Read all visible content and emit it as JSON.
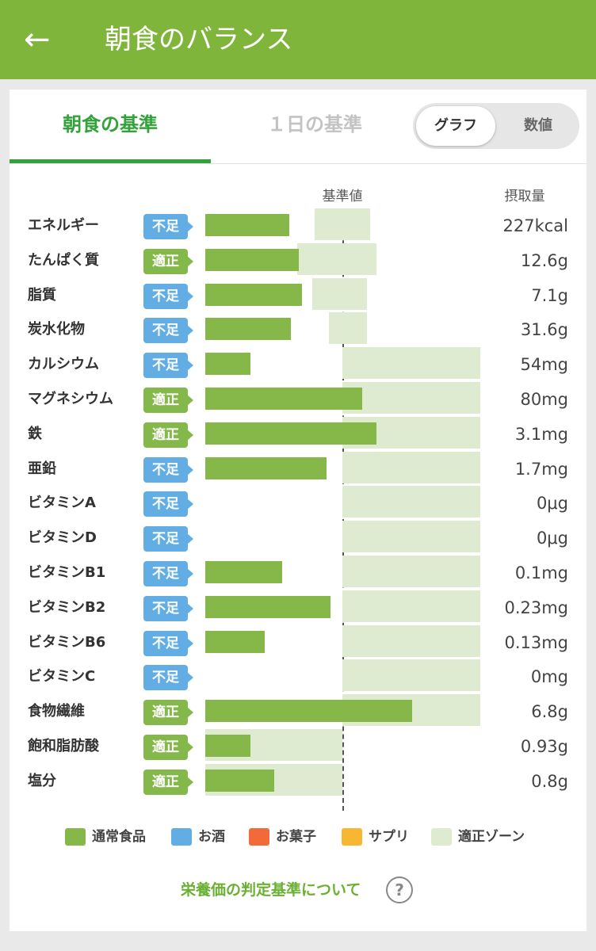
{
  "appbar": {
    "title": "朝食のバランス",
    "back_icon": "←"
  },
  "tabs": {
    "active": "朝食の基準",
    "inactive": "１日の基準"
  },
  "toggle": {
    "on": "グラフ",
    "off": "数値"
  },
  "chart_data": {
    "type": "bar",
    "header_standard": "基準値",
    "header_intake": "摂取量",
    "reference_label": "基準値",
    "unit_note": "percent of 基準値",
    "rows": [
      {
        "label": "エネルギー",
        "status": "不足",
        "value": "227kcal",
        "pct": 61,
        "zone": [
          80,
          120
        ]
      },
      {
        "label": "たんぱく質",
        "status": "適正",
        "value": "12.6g",
        "pct": 68,
        "zone": [
          67,
          125
        ]
      },
      {
        "label": "脂質",
        "status": "不足",
        "value": "7.1g",
        "pct": 70,
        "zone": [
          78,
          118
        ]
      },
      {
        "label": "炭水化物",
        "status": "不足",
        "value": "31.6g",
        "pct": 62,
        "zone": [
          90,
          118
        ]
      },
      {
        "label": "カルシウム",
        "status": "不足",
        "value": "54mg",
        "pct": 33,
        "zone": [
          100,
          200
        ]
      },
      {
        "label": "マグネシウム",
        "status": "適正",
        "value": "80mg",
        "pct": 114,
        "zone": [
          100,
          200
        ]
      },
      {
        "label": "鉄",
        "status": "適正",
        "value": "3.1mg",
        "pct": 124,
        "zone": [
          100,
          200
        ]
      },
      {
        "label": "亜鉛",
        "status": "不足",
        "value": "1.7mg",
        "pct": 88,
        "zone": [
          100,
          200
        ]
      },
      {
        "label": "ビタミンA",
        "status": "不足",
        "value": "0μg",
        "pct": 0,
        "zone": [
          100,
          200
        ]
      },
      {
        "label": "ビタミンD",
        "status": "不足",
        "value": "0μg",
        "pct": 0,
        "zone": [
          100,
          200
        ]
      },
      {
        "label": "ビタミンB1",
        "status": "不足",
        "value": "0.1mg",
        "pct": 56,
        "zone": [
          100,
          200
        ]
      },
      {
        "label": "ビタミンB2",
        "status": "不足",
        "value": "0.23mg",
        "pct": 91,
        "zone": [
          100,
          200
        ]
      },
      {
        "label": "ビタミンB6",
        "status": "不足",
        "value": "0.13mg",
        "pct": 43,
        "zone": [
          100,
          200
        ]
      },
      {
        "label": "ビタミンC",
        "status": "不足",
        "value": "0mg",
        "pct": 0,
        "zone": [
          100,
          200
        ]
      },
      {
        "label": "食物繊維",
        "status": "適正",
        "value": "6.8g",
        "pct": 150,
        "zone": [
          100,
          200
        ]
      },
      {
        "label": "飽和脂肪酸",
        "status": "適正",
        "value": "0.93g",
        "pct": 33,
        "zone": [
          0,
          100
        ]
      },
      {
        "label": "塩分",
        "status": "適正",
        "value": "0.8g",
        "pct": 50,
        "zone": [
          0,
          100
        ]
      }
    ],
    "legend": [
      {
        "label": "通常食品",
        "color": "#86b849"
      },
      {
        "label": "お酒",
        "color": "#62aee4"
      },
      {
        "label": "お菓子",
        "color": "#f26a3a"
      },
      {
        "label": "サプリ",
        "color": "#f8b733"
      },
      {
        "label": "適正ゾーン",
        "color": "#dfebd0"
      }
    ]
  },
  "footer": {
    "link": "栄養価の判定基準について",
    "help_icon": "?"
  },
  "colors": {
    "brand": "#7fb53b",
    "tab_active": "#34a23a",
    "lack": "#62aee4",
    "ok": "#85b84a"
  }
}
